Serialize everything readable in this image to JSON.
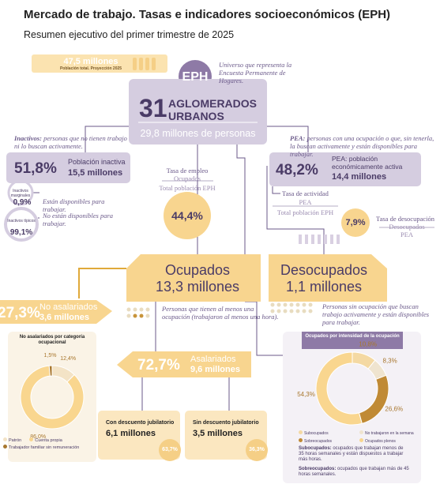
{
  "header": {
    "title": "Mercado de trabajo. Tasas e indicadores socioeconómicos (EPH)",
    "subtitle": "Resumen ejecutivo del primer trimestre de 2025"
  },
  "population": {
    "value": "47,5 millones",
    "label": "Población total. Proyección 2025"
  },
  "eph": {
    "label": "EPH",
    "note": "Universo que representa la Encuesta Permanente de Hogares."
  },
  "agglomerates": {
    "number": "31",
    "label": "AGLOMERADOS URBANOS",
    "people": "29,8 millones de personas"
  },
  "inactive": {
    "term": "Inactivos:",
    "note": "personas que no tienen trabajo ni lo buscan activamente.",
    "rate": "51,8%",
    "label": "Población inactiva",
    "count": "15,5 millones",
    "marginal": {
      "label": "Inactivos marginales",
      "value": "0,9%",
      "note": "Están disponibles para trabajar."
    },
    "typical": {
      "label": "Inactivos típicos",
      "value": "99,1%",
      "note": "No están disponibles para trabajar."
    }
  },
  "pea": {
    "term": "PEA:",
    "note": "personas con una ocupación o que, sin tenerla, la buscan activamente y están disponibles para trabajar.",
    "rate": "48,2%",
    "label": "PEA: población económicamente activa",
    "count": "14,4 millones"
  },
  "employment_rate": {
    "name": "Tasa de empleo",
    "numerator": "Ocupados",
    "denominator": "Total población EPH",
    "value": "44,4%"
  },
  "activity_rate": {
    "name": "Tasa de actividad",
    "numerator": "PEA",
    "denominator": "Total población EPH"
  },
  "unemployment_rate": {
    "name": "Tasa de desocupación",
    "numerator": "Desocupados",
    "denominator": "PEA",
    "value": "7,9%"
  },
  "employed": {
    "label": "Ocupados",
    "count": "13,3 millones",
    "note": "Personas que tienen al menos una ocupación (trabajaron al menos una hora)."
  },
  "unemployed": {
    "label": "Desocupados",
    "count": "1,1 millones",
    "note": "Personas sin ocupación que buscan trabajo activamente y están disponibles para trabajar."
  },
  "non_salaried": {
    "rate": "27,3%",
    "label": "No asalariados",
    "count": "3,6 millones",
    "donut": {
      "title": "No asalariados por categoría ocupacional",
      "categories": [
        "Patrón",
        "Cuenta propia",
        "Trabajador familiar sin remuneración"
      ],
      "values": [
        12.4,
        86.0,
        1.5
      ],
      "value_labels": [
        "12,4%",
        "86,0%",
        "1,5%"
      ],
      "colors": [
        "#f3e3c6",
        "#f9d68f",
        "#a8772e"
      ]
    }
  },
  "salaried": {
    "rate": "72,7%",
    "label": "Asalariados",
    "count": "9,6 millones",
    "with_pension": {
      "label": "Con descuento jubilatorio",
      "count": "6,1 millones",
      "share": "63,7%"
    },
    "without_pension": {
      "label": "Sin descuento jubilatorio",
      "count": "3,5 millones",
      "share": "36,3%"
    }
  },
  "employed_intensity": {
    "donut": {
      "title": "Ocupados por intensidad de la ocupación",
      "categories": [
        "Subocupados",
        "No trabajaron en la semana",
        "Sobreocupados",
        "Ocupados plenos"
      ],
      "values": [
        10.8,
        8.3,
        26.6,
        54.3
      ],
      "value_labels": [
        "10,8%",
        "8,3%",
        "26,6%",
        "54,3%"
      ],
      "colors": [
        "#f4d9a3",
        "#efe4cf",
        "#c08a35",
        "#f9d68f"
      ]
    },
    "notes": [
      {
        "term": "Subocupados:",
        "text": "ocupados que trabajan menos de 35 horas semanales y están dispuestos a trabajar más horas."
      },
      {
        "term": "Sobreocupados:",
        "text": "ocupados que trabajan más de 45 horas semanales."
      }
    ]
  }
}
